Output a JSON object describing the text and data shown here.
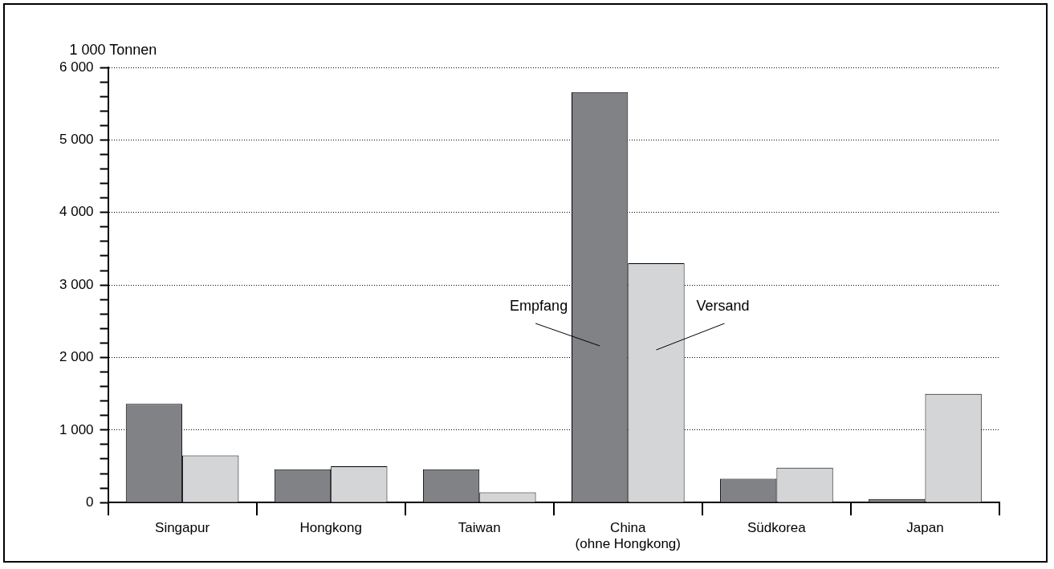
{
  "chart_data": {
    "type": "bar",
    "ylabel": "1 000 Tonnen",
    "categories": [
      "Singapur",
      "Hongkong",
      "Taiwan",
      "China\n(ohne Hongkong)",
      "Südkorea",
      "Japan"
    ],
    "series": [
      {
        "name": "Empfang",
        "color": "#818286",
        "values": [
          1360,
          460,
          460,
          5660,
          330,
          50
        ]
      },
      {
        "name": "Versand",
        "color": "#d4d5d7",
        "values": [
          650,
          500,
          140,
          3300,
          480,
          1500
        ]
      }
    ],
    "ylim": [
      0,
      6000
    ],
    "yticks": [
      {
        "value": 0,
        "label": "0"
      },
      {
        "value": 200,
        "label": null
      },
      {
        "value": 400,
        "label": null
      },
      {
        "value": 600,
        "label": null
      },
      {
        "value": 800,
        "label": null
      },
      {
        "value": 1000,
        "label": "1 000"
      },
      {
        "value": 1200,
        "label": null
      },
      {
        "value": 1400,
        "label": null
      },
      {
        "value": 1600,
        "label": null
      },
      {
        "value": 1800,
        "label": null
      },
      {
        "value": 2000,
        "label": "2 000"
      },
      {
        "value": 2200,
        "label": null
      },
      {
        "value": 2400,
        "label": null
      },
      {
        "value": 2600,
        "label": null
      },
      {
        "value": 2800,
        "label": null
      },
      {
        "value": 3000,
        "label": "3 000"
      },
      {
        "value": 3200,
        "label": null
      },
      {
        "value": 3400,
        "label": null
      },
      {
        "value": 3600,
        "label": null
      },
      {
        "value": 3800,
        "label": null
      },
      {
        "value": 4000,
        "label": "4 000"
      },
      {
        "value": 4200,
        "label": null
      },
      {
        "value": 4400,
        "label": null
      },
      {
        "value": 4600,
        "label": null
      },
      {
        "value": 4800,
        "label": null
      },
      {
        "value": 5000,
        "label": "5 000"
      },
      {
        "value": 5200,
        "label": null
      },
      {
        "value": 5400,
        "label": null
      },
      {
        "value": 5600,
        "label": null
      },
      {
        "value": 5800,
        "label": null
      },
      {
        "value": 6000,
        "label": "6 000"
      }
    ],
    "grid": "y",
    "legend": false
  }
}
